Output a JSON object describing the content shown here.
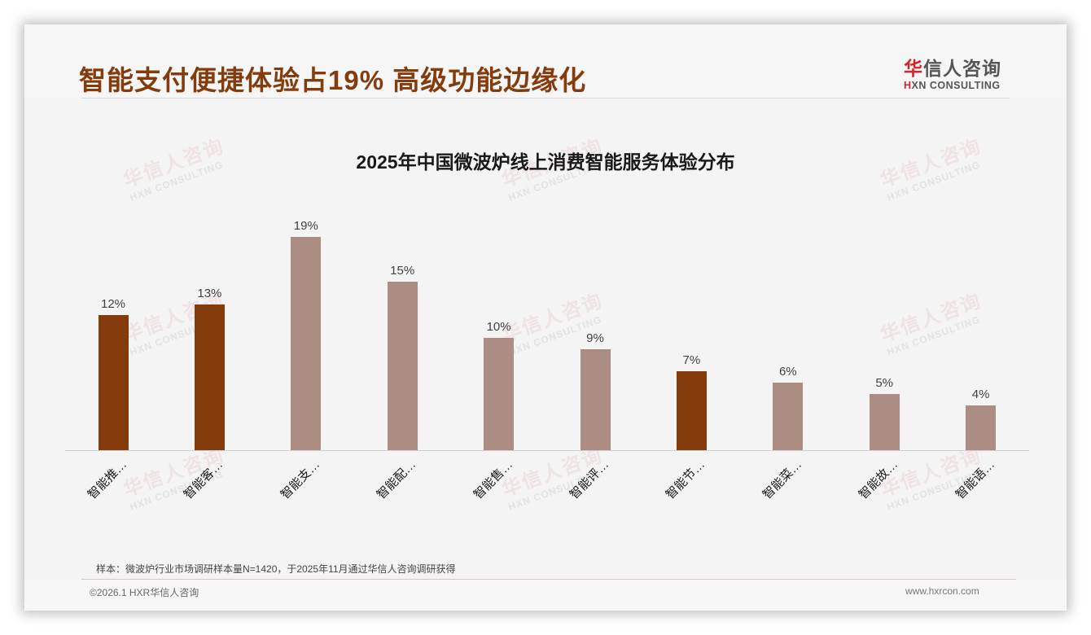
{
  "header": {
    "title": "智能支付便捷体验占19% 高级功能边缘化",
    "logo_cn_red": "华",
    "logo_cn_rest": "信人咨询",
    "logo_en_red": "H",
    "logo_en_rest": "XN CONSULTING"
  },
  "watermark": {
    "cn": "华信人咨询",
    "en": "HXN CONSULTING"
  },
  "colors": {
    "highlight": "#843C0C",
    "normal": "#AB8D83",
    "title": "#843C0C"
  },
  "chart_data": {
    "type": "bar",
    "title": "2025年中国微波炉线上消费智能服务体验分布",
    "categories": [
      "智能推…",
      "智能客…",
      "智能支…",
      "智能配…",
      "智能售…",
      "智能评…",
      "智能节…",
      "智能菜…",
      "智能故…",
      "智能语…"
    ],
    "values": [
      12,
      13,
      19,
      15,
      10,
      9,
      7,
      6,
      5,
      4
    ],
    "value_labels": [
      "12%",
      "13%",
      "19%",
      "15%",
      "10%",
      "9%",
      "7%",
      "6%",
      "5%",
      "4%"
    ],
    "highlighted": [
      true,
      true,
      false,
      false,
      false,
      false,
      true,
      false,
      false,
      false
    ],
    "xlabel": "",
    "ylabel": "",
    "ylim": [
      0,
      20
    ],
    "grid": false,
    "legend": null,
    "unit": "%"
  },
  "footer": {
    "note": "样本：微波炉行业市场调研样本量N=1420，于2025年11月通过华信人咨询调研获得",
    "copyright": "©2026.1 HXR华信人咨询",
    "site": "www.hxrcon.com"
  }
}
